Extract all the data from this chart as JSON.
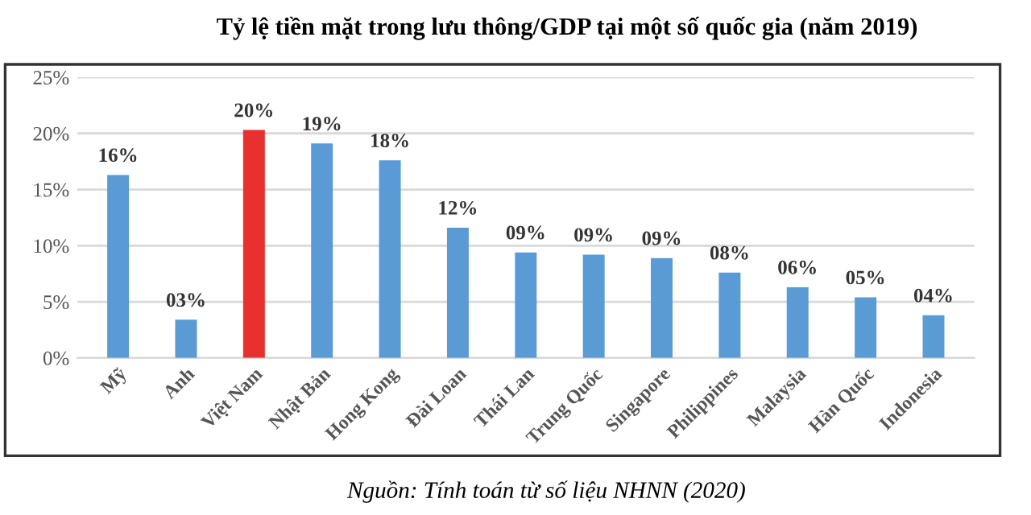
{
  "chart_data": {
    "type": "bar",
    "title": "Tỷ lệ tiền mặt trong lưu thông/GDP tại một số quốc gia (năm 2019)",
    "categories": [
      "Mỹ",
      "Anh",
      "Việt Nam",
      "Nhật Bản",
      "Hong Kong",
      "Đài Loan",
      "Thái Lan",
      "Trung Quốc",
      "Singapore",
      "Philippines",
      "Malaysia",
      "Hàn Quốc",
      "Indonesia"
    ],
    "values": [
      16.3,
      3.4,
      20.3,
      19.1,
      17.6,
      11.6,
      9.4,
      9.2,
      8.9,
      7.6,
      6.3,
      5.4,
      3.8
    ],
    "value_labels": [
      "16%",
      "03%",
      "20%",
      "19%",
      "18%",
      "12%",
      "09%",
      "09%",
      "09%",
      "08%",
      "06%",
      "05%",
      "04%"
    ],
    "colors": [
      "#5b9bd5",
      "#5b9bd5",
      "#e8312f",
      "#5b9bd5",
      "#5b9bd5",
      "#5b9bd5",
      "#5b9bd5",
      "#5b9bd5",
      "#5b9bd5",
      "#5b9bd5",
      "#5b9bd5",
      "#5b9bd5",
      "#5b9bd5"
    ],
    "ylim": [
      0,
      25
    ],
    "yticks": [
      {
        "value": 0,
        "label": "0%"
      },
      {
        "value": 5,
        "label": "5%"
      },
      {
        "value": 10,
        "label": "10%"
      },
      {
        "value": 15,
        "label": "15%"
      },
      {
        "value": 20,
        "label": "20%"
      },
      {
        "value": 25,
        "label": "25%"
      }
    ],
    "grid": "y",
    "annotations": [
      "Nguồn: Tính toán từ số liệu NHNN (2020)"
    ]
  }
}
